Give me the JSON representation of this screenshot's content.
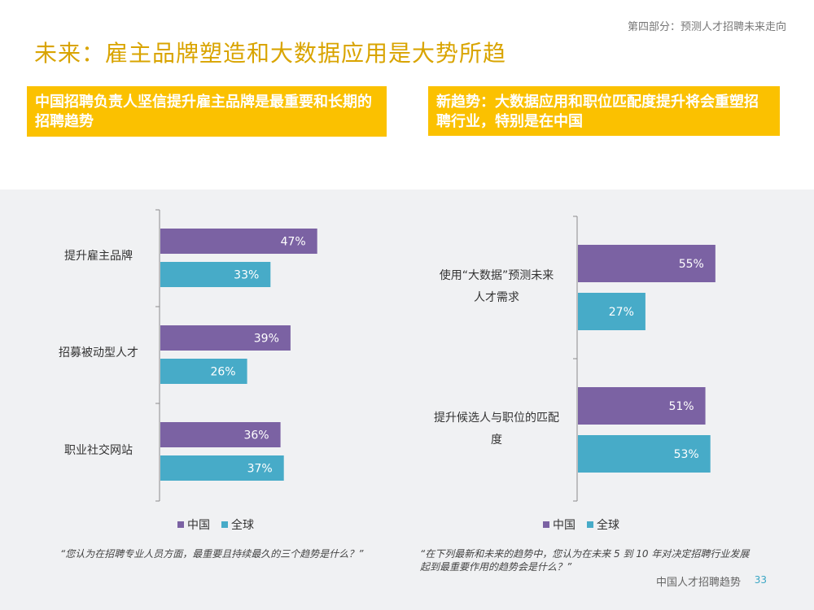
{
  "header": {
    "section_label": "第四部分：预测人才招聘未来走向",
    "title": "未来：雇主品牌塑造和大数据应用是大势所趋"
  },
  "headlines": {
    "left": "中国招聘负责人坚信提升雇主品牌是最重要和长期的招聘趋势",
    "right": "新趋势：大数据应用和职位匹配度提升将会重塑招聘行业，特别是在中国"
  },
  "colors": {
    "china": "#7b62a3",
    "global": "#47abc8",
    "accent": "#fbc100"
  },
  "chart_data": [
    {
      "type": "bar",
      "orientation": "horizontal",
      "categories": [
        "提升雇主品牌",
        "招募被动型人才",
        "职业社交网站"
      ],
      "series": [
        {
          "name": "中国",
          "values": [
            47,
            39,
            36
          ]
        },
        {
          "name": "全球",
          "values": [
            33,
            26,
            37
          ]
        }
      ],
      "value_labels": {
        "中国": [
          "47%",
          "39%",
          "36%"
        ],
        "全球": [
          "33%",
          "26%",
          "37%"
        ]
      },
      "legend": [
        "中国",
        "全球"
      ],
      "legend_position": "bottom",
      "footnote": "“您认为在招聘专业人员方面，最重要且持续最久的三个趋势是什么？”"
    },
    {
      "type": "bar",
      "orientation": "horizontal",
      "categories": [
        "使用“大数据”预测未来人才需求",
        "提升候选人与职位的匹配度"
      ],
      "category_lines": [
        [
          "使用“大数据”预测未来",
          "人才需求"
        ],
        [
          "提升候选人与职位的匹配",
          "度"
        ]
      ],
      "series": [
        {
          "name": "中国",
          "values": [
            55,
            51
          ]
        },
        {
          "name": "全球",
          "values": [
            27,
            53
          ]
        }
      ],
      "value_labels": {
        "中国": [
          "55%",
          "51%"
        ],
        "全球": [
          "27%",
          "53%"
        ]
      },
      "legend": [
        "中国",
        "全球"
      ],
      "legend_position": "bottom",
      "footnote": "“在下列最新和未来的趋势中，您认为在未来 5 到 10 年对决定招聘行业发展起到最重要作用的趋势会是什么？”"
    }
  ],
  "footer": {
    "report_title": "中国人才招聘趋势",
    "page_number": "33"
  }
}
